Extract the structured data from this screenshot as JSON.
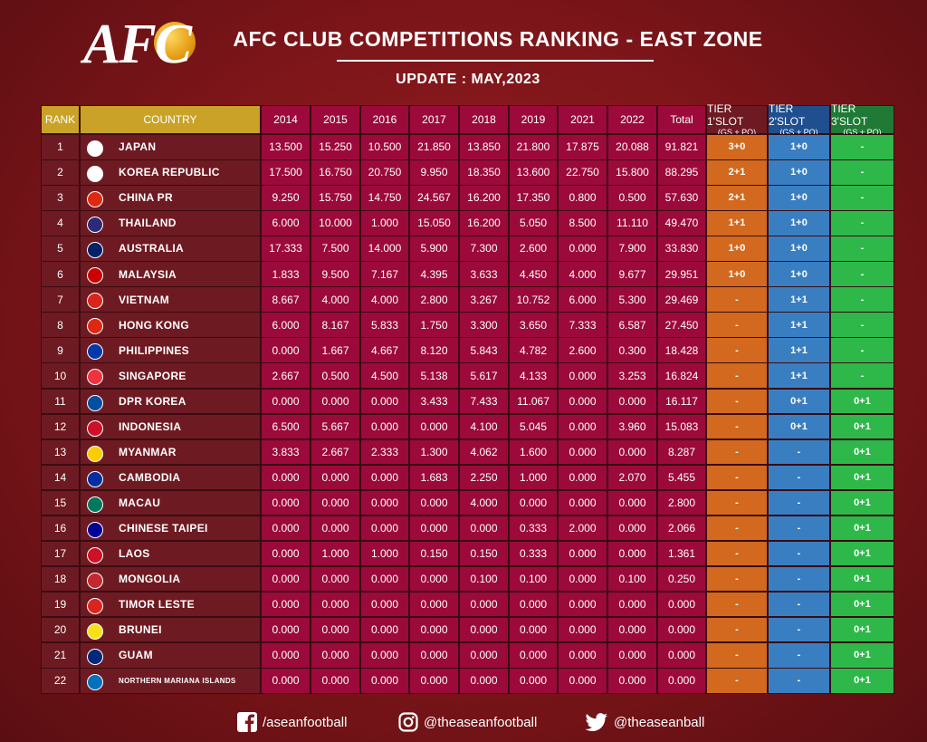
{
  "header": {
    "logo": "AFC",
    "title": "AFC CLUB COMPETITIONS RANKING - EAST ZONE",
    "update": "UPDATE : MAY,2023"
  },
  "table": {
    "columns": [
      "RANK",
      "COUNTRY",
      "2014",
      "2015",
      "2016",
      "2017",
      "2018",
      "2019",
      "2021",
      "2022",
      "Total",
      {
        "title": "TIER 1'SLOT",
        "note": "(GS + PO)"
      },
      {
        "title": "TIER 2'SLOT",
        "note": "(GS + PO)"
      },
      {
        "title": "TIER 3'SLOT",
        "note": "(GS + PO)"
      }
    ],
    "rows": [
      [
        "1",
        "JAPAN",
        "13.500",
        "15.250",
        "10.500",
        "21.850",
        "13.850",
        "21.800",
        "17.875",
        "20.088",
        "91.821",
        "3+0",
        "1+0",
        "-"
      ],
      [
        "2",
        "KOREA REPUBLIC",
        "17.500",
        "16.750",
        "20.750",
        "9.950",
        "18.350",
        "13.600",
        "22.750",
        "15.800",
        "88.295",
        "2+1",
        "1+0",
        "-"
      ],
      [
        "3",
        "CHINA PR",
        "9.250",
        "15.750",
        "14.750",
        "24.567",
        "16.200",
        "17.350",
        "0.800",
        "0.500",
        "57.630",
        "2+1",
        "1+0",
        "-"
      ],
      [
        "4",
        "THAILAND",
        "6.000",
        "10.000",
        "1.000",
        "15.050",
        "16.200",
        "5.050",
        "8.500",
        "11.110",
        "49.470",
        "1+1",
        "1+0",
        "-"
      ],
      [
        "5",
        "AUSTRALIA",
        "17.333",
        "7.500",
        "14.000",
        "5.900",
        "7.300",
        "2.600",
        "0.000",
        "7.900",
        "33.830",
        "1+0",
        "1+0",
        "-"
      ],
      [
        "6",
        "MALAYSIA",
        "1.833",
        "9.500",
        "7.167",
        "4.395",
        "3.633",
        "4.450",
        "4.000",
        "9.677",
        "29.951",
        "1+0",
        "1+0",
        "-"
      ],
      [
        "7",
        "VIETNAM",
        "8.667",
        "4.000",
        "4.000",
        "2.800",
        "3.267",
        "10.752",
        "6.000",
        "5.300",
        "29.469",
        "-",
        "1+1",
        "-"
      ],
      [
        "8",
        "HONG KONG",
        "6.000",
        "8.167",
        "5.833",
        "1.750",
        "3.300",
        "3.650",
        "7.333",
        "6.587",
        "27.450",
        "-",
        "1+1",
        "-"
      ],
      [
        "9",
        "PHILIPPINES",
        "0.000",
        "1.667",
        "4.667",
        "8.120",
        "5.843",
        "4.782",
        "2.600",
        "0.300",
        "18.428",
        "-",
        "1+1",
        "-"
      ],
      [
        "10",
        "SINGAPORE",
        "2.667",
        "0.500",
        "4.500",
        "5.138",
        "5.617",
        "4.133",
        "0.000",
        "3.253",
        "16.824",
        "-",
        "1+1",
        "-"
      ],
      [
        "11",
        "DPR KOREA",
        "0.000",
        "0.000",
        "0.000",
        "3.433",
        "7.433",
        "11.067",
        "0.000",
        "0.000",
        "16.117",
        "-",
        "0+1",
        "0+1"
      ],
      [
        "12",
        "INDONESIA",
        "6.500",
        "5.667",
        "0.000",
        "0.000",
        "4.100",
        "5.045",
        "0.000",
        "3.960",
        "15.083",
        "-",
        "0+1",
        "0+1"
      ],
      [
        "13",
        "MYANMAR",
        "3.833",
        "2.667",
        "2.333",
        "1.300",
        "4.062",
        "1.600",
        "0.000",
        "0.000",
        "8.287",
        "-",
        "-",
        "0+1"
      ],
      [
        "14",
        "CAMBODIA",
        "0.000",
        "0.000",
        "0.000",
        "1.683",
        "2.250",
        "1.000",
        "0.000",
        "2.070",
        "5.455",
        "-",
        "-",
        "0+1"
      ],
      [
        "15",
        "MACAU",
        "0.000",
        "0.000",
        "0.000",
        "0.000",
        "4.000",
        "0.000",
        "0.000",
        "0.000",
        "2.800",
        "-",
        "-",
        "0+1"
      ],
      [
        "16",
        "CHINESE TAIPEI",
        "0.000",
        "0.000",
        "0.000",
        "0.000",
        "0.000",
        "0.333",
        "2.000",
        "0.000",
        "2.066",
        "-",
        "-",
        "0+1"
      ],
      [
        "17",
        "LAOS",
        "0.000",
        "1.000",
        "1.000",
        "0.150",
        "0.150",
        "0.333",
        "0.000",
        "0.000",
        "1.361",
        "-",
        "-",
        "0+1"
      ],
      [
        "18",
        "MONGOLIA",
        "0.000",
        "0.000",
        "0.000",
        "0.000",
        "0.100",
        "0.100",
        "0.000",
        "0.100",
        "0.250",
        "-",
        "-",
        "0+1"
      ],
      [
        "19",
        "TIMOR LESTE",
        "0.000",
        "0.000",
        "0.000",
        "0.000",
        "0.000",
        "0.000",
        "0.000",
        "0.000",
        "0.000",
        "-",
        "-",
        "0+1"
      ],
      [
        "20",
        "BRUNEI",
        "0.000",
        "0.000",
        "0.000",
        "0.000",
        "0.000",
        "0.000",
        "0.000",
        "0.000",
        "0.000",
        "-",
        "-",
        "0+1"
      ],
      [
        "21",
        "GUAM",
        "0.000",
        "0.000",
        "0.000",
        "0.000",
        "0.000",
        "0.000",
        "0.000",
        "0.000",
        "0.000",
        "-",
        "-",
        "0+1"
      ],
      [
        "22",
        "NORTHERN MARIANA ISLANDS",
        "0.000",
        "0.000",
        "0.000",
        "0.000",
        "0.000",
        "0.000",
        "0.000",
        "0.000",
        "0.000",
        "-",
        "-",
        "0+1"
      ]
    ]
  },
  "footer": {
    "facebook": "/aseanfootball",
    "instagram": "@theaseanfootball",
    "twitter": "@theaseanball"
  }
}
